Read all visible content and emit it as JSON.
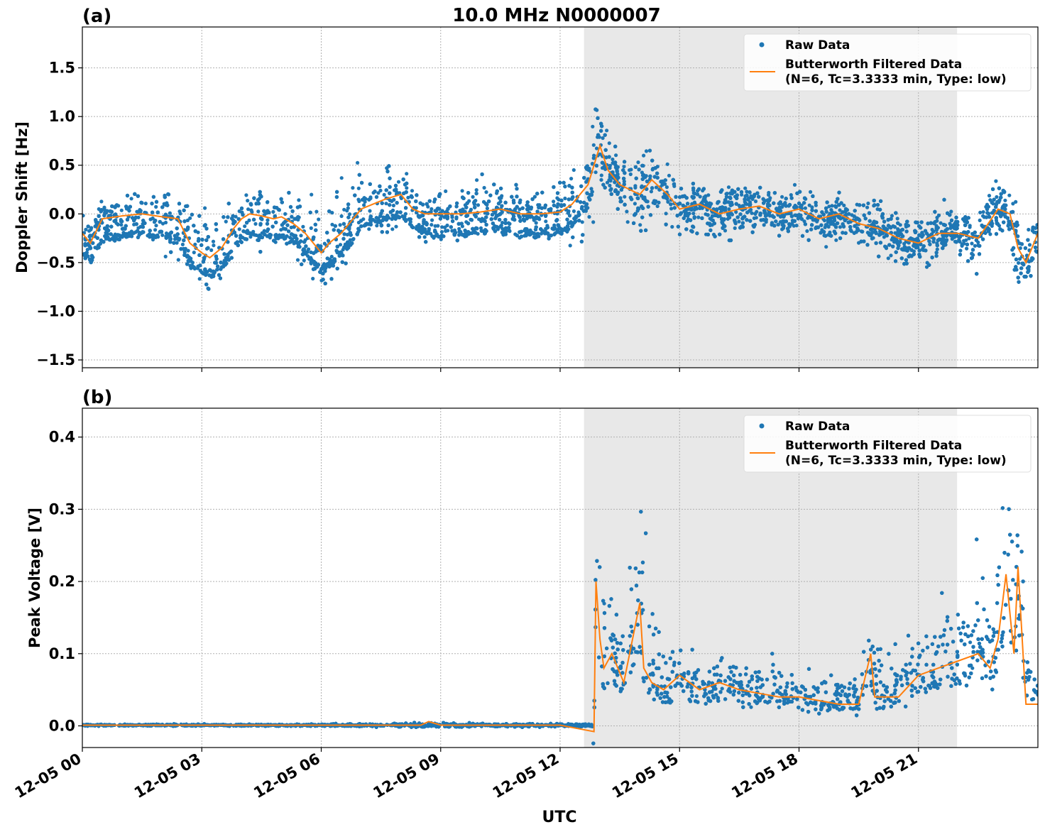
{
  "figure": {
    "title": "10.0 MHz N0000007",
    "xlabel": "UTC",
    "x_ticks": [
      "12-05 00",
      "12-05 03",
      "12-05 06",
      "12-05 09",
      "12-05 12",
      "12-05 15",
      "12-05 18",
      "12-05 21"
    ],
    "shaded_region_hours": [
      12.6,
      21.97
    ],
    "colors": {
      "raw": "#1f77b4",
      "filtered": "#ff7f0e",
      "shade": "#e8e8e8",
      "grid": "#b0b0b0"
    }
  },
  "legend": {
    "raw_label": "Raw Data",
    "filtered_label_line1": "Butterworth Filtered Data",
    "filtered_label_line2": "(N=6, Tc=3.3333 min, Type: low)"
  },
  "chart_data": [
    {
      "type": "scatter",
      "panel_label": "(a)",
      "ylabel": "Doppler Shift [Hz]",
      "xlim_hours": [
        0,
        24
      ],
      "ylim": [
        -1.58,
        1.92
      ],
      "y_ticks": [
        -1.5,
        -1.0,
        -0.5,
        0.0,
        0.5,
        1.0,
        1.5
      ],
      "y_tick_labels": [
        "−1.5",
        "−1.0",
        "−0.5",
        "0.0",
        "0.5",
        "1.0",
        "1.5"
      ],
      "grid": true,
      "legend_position": "top-right",
      "series": [
        {
          "name": "Butterworth Filtered Data",
          "x_hours": [
            0,
            0.2,
            0.5,
            1,
            1.5,
            2,
            2.4,
            2.7,
            3,
            3.2,
            3.5,
            3.8,
            4,
            4.2,
            4.5,
            4.8,
            5,
            5.3,
            5.6,
            5.9,
            6,
            6.2,
            6.5,
            6.8,
            7,
            7.3,
            7.6,
            8,
            8.3,
            8.6,
            9,
            9.5,
            10,
            10.5,
            11,
            11.5,
            12,
            12.3,
            12.5,
            12.7,
            12.85,
            13,
            13.2,
            13.5,
            14,
            14.3,
            14.7,
            15,
            15.5,
            16,
            16.5,
            17,
            17.5,
            18,
            18.5,
            19,
            19.5,
            20,
            20.5,
            21,
            21.5,
            22,
            22.5,
            23,
            23.3,
            23.5,
            23.7,
            24
          ],
          "y": [
            -0.2,
            -0.3,
            -0.05,
            -0.02,
            0.0,
            -0.03,
            -0.05,
            -0.3,
            -0.4,
            -0.45,
            -0.35,
            -0.15,
            -0.05,
            0.0,
            -0.02,
            -0.05,
            -0.03,
            -0.1,
            -0.2,
            -0.35,
            -0.4,
            -0.3,
            -0.2,
            -0.05,
            0.05,
            0.1,
            0.15,
            0.2,
            0.05,
            0.0,
            0.0,
            0.0,
            0.02,
            0.05,
            0.0,
            0.0,
            0.02,
            0.1,
            0.2,
            0.3,
            0.5,
            0.7,
            0.45,
            0.3,
            0.2,
            0.35,
            0.2,
            0.05,
            0.1,
            0.0,
            0.05,
            0.08,
            0.0,
            0.05,
            -0.05,
            0.0,
            -0.1,
            -0.15,
            -0.25,
            -0.3,
            -0.2,
            -0.2,
            -0.25,
            0.05,
            0.0,
            -0.35,
            -0.5,
            -0.2
          ]
        },
        {
          "name": "Raw Data",
          "note_hours_and_spread": [
            [
              0,
              0.4
            ],
            [
              1,
              0.35
            ],
            [
              2,
              0.45
            ],
            [
              3,
              0.8
            ],
            [
              4,
              0.5
            ],
            [
              5,
              0.45
            ],
            [
              6,
              0.75
            ],
            [
              7,
              0.6
            ],
            [
              8,
              0.6
            ],
            [
              9,
              0.35
            ],
            [
              10,
              0.5
            ],
            [
              11,
              0.35
            ],
            [
              12,
              0.55
            ],
            [
              12.9,
              0.9
            ],
            [
              13.5,
              0.45
            ],
            [
              14.2,
              0.6
            ],
            [
              15,
              0.45
            ],
            [
              16,
              0.45
            ],
            [
              17,
              0.4
            ],
            [
              18,
              0.4
            ],
            [
              19,
              0.35
            ],
            [
              20,
              0.45
            ],
            [
              21,
              0.4
            ],
            [
              22,
              0.4
            ],
            [
              23,
              0.45
            ],
            [
              23.6,
              0.6
            ],
            [
              24,
              0.4
            ]
          ]
        }
      ]
    },
    {
      "type": "scatter",
      "panel_label": "(b)",
      "ylabel": "Peak Voltage [V]",
      "xlim_hours": [
        0,
        24
      ],
      "ylim": [
        -0.03,
        0.44
      ],
      "y_ticks": [
        0.0,
        0.1,
        0.2,
        0.3,
        0.4
      ],
      "y_tick_labels": [
        "0.0",
        "0.1",
        "0.2",
        "0.3",
        "0.4"
      ],
      "grid": true,
      "legend_position": "top-right",
      "series": [
        {
          "name": "Butterworth Filtered Data",
          "x_hours": [
            0,
            3,
            6,
            8.5,
            8.7,
            9,
            12,
            12.85,
            12.9,
            13,
            13.1,
            13.3,
            13.6,
            14,
            14.1,
            14.3,
            14.6,
            15,
            15.5,
            16,
            16.5,
            17,
            17.5,
            18,
            18.5,
            19,
            19.5,
            19.8,
            19.9,
            20,
            20.5,
            21,
            21.5,
            22,
            22.5,
            22.8,
            23,
            23.2,
            23.4,
            23.5,
            23.7,
            24
          ],
          "y": [
            0.001,
            0.001,
            0.001,
            0.001,
            0.006,
            0.001,
            0.001,
            -0.008,
            0.2,
            0.12,
            0.08,
            0.1,
            0.06,
            0.17,
            0.08,
            0.06,
            0.05,
            0.07,
            0.05,
            0.06,
            0.05,
            0.045,
            0.04,
            0.04,
            0.035,
            0.03,
            0.03,
            0.1,
            0.04,
            0.04,
            0.04,
            0.07,
            0.08,
            0.09,
            0.1,
            0.08,
            0.12,
            0.21,
            0.1,
            0.22,
            0.03,
            0.03
          ]
        },
        {
          "name": "Raw Data",
          "note_hours_and_spread": [
            [
              0,
              0.004
            ],
            [
              6,
              0.004
            ],
            [
              8.6,
              0.01
            ],
            [
              12.8,
              0.005
            ],
            [
              12.95,
              0.33
            ],
            [
              13.5,
              0.2
            ],
            [
              14.1,
              0.36
            ],
            [
              14.6,
              0.14
            ],
            [
              15.5,
              0.13
            ],
            [
              16.5,
              0.12
            ],
            [
              17.5,
              0.1
            ],
            [
              18.5,
              0.09
            ],
            [
              19.5,
              0.08
            ],
            [
              19.8,
              0.16
            ],
            [
              20.5,
              0.13
            ],
            [
              21,
              0.18
            ],
            [
              21.5,
              0.2
            ],
            [
              22,
              0.22
            ],
            [
              22.5,
              0.25
            ],
            [
              23,
              0.32
            ],
            [
              23.3,
              0.4
            ],
            [
              23.5,
              0.42
            ],
            [
              24,
              0.08
            ]
          ]
        }
      ]
    }
  ]
}
